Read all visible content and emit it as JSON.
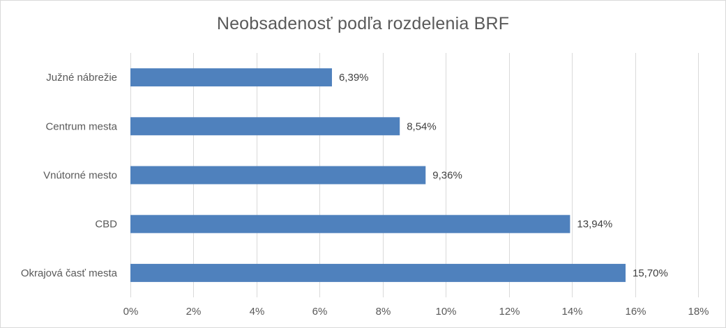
{
  "chart_data": {
    "type": "bar",
    "orientation": "horizontal",
    "title": "Neobsadenosť podľa rozdelenia BRF",
    "categories": [
      "Južné nábrežie",
      "Centrum mesta",
      "Vnútorné mesto",
      "CBD",
      "Okrajová časť mesta"
    ],
    "values": [
      6.39,
      8.54,
      9.36,
      13.94,
      15.7
    ],
    "data_labels": [
      "6,39%",
      "8,54%",
      "9,36%",
      "13,94%",
      "15,70%"
    ],
    "x_ticks": [
      "0%",
      "2%",
      "4%",
      "6%",
      "8%",
      "10%",
      "12%",
      "14%",
      "16%",
      "18%"
    ],
    "xlim": [
      0,
      18
    ],
    "grid": true,
    "legend": "none",
    "bar_color": "#4f81bd"
  }
}
